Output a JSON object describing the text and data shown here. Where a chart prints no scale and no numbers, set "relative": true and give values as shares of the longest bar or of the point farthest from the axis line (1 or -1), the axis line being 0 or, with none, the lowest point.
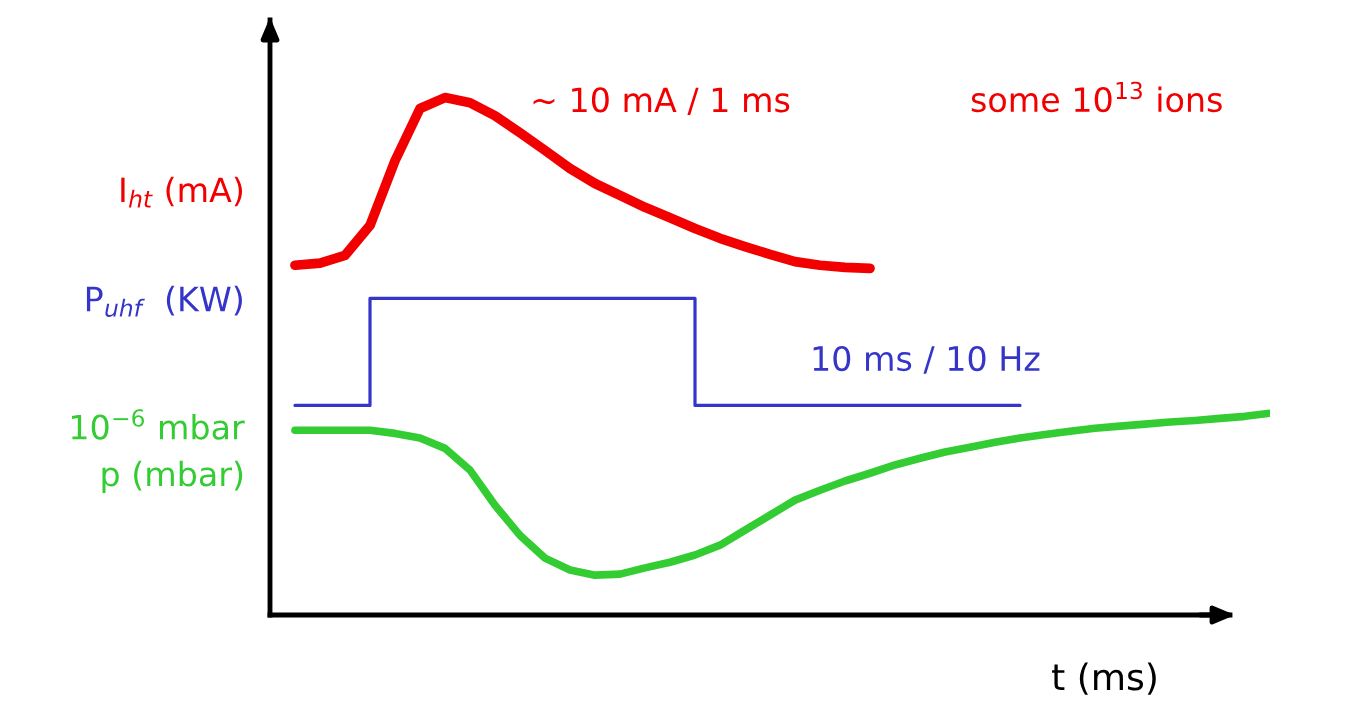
{
  "chart_data": {
    "type": "line",
    "relative": true,
    "xlabel": "t (ms)",
    "marker": "none",
    "line_style": "solid",
    "categories": [
      null,
      null,
      null,
      null,
      null,
      null,
      null,
      null,
      null,
      null,
      null,
      null,
      null,
      null,
      null,
      null,
      null,
      null,
      null,
      null,
      null,
      null,
      null,
      null,
      null,
      null,
      null,
      null,
      null,
      null,
      null,
      null,
      null,
      null,
      null,
      null,
      null,
      null,
      null,
      null
    ],
    "series": [
      {
        "name": "I$_{ht}$ (mA)",
        "color": "#f20000",
        "values": [
          0.676,
          0.68,
          0.695,
          0.753,
          0.878,
          0.979,
          1.0,
          0.99,
          0.965,
          0.932,
          0.898,
          0.863,
          0.834,
          0.811,
          0.788,
          0.768,
          0.747,
          0.728,
          0.712,
          0.697,
          0.683,
          0.676,
          0.672,
          0.67,
          null,
          null,
          null,
          null,
          null,
          null,
          null,
          null,
          null,
          null,
          null,
          null,
          null,
          null,
          null,
          null
        ]
      },
      {
        "name": "P$_{uhf}$  (KW)",
        "type": "step",
        "color": "#3535c8",
        "values": [
          0.405,
          0.405,
          0.405,
          0.612,
          0.612,
          0.612,
          0.612,
          0.612,
          0.612,
          0.612,
          0.612,
          0.612,
          0.612,
          0.612,
          0.612,
          0.612,
          0.405,
          0.405,
          0.405,
          0.405,
          0.405,
          0.405,
          0.405,
          0.405,
          0.405,
          0.405,
          0.405,
          0.405,
          0.405,
          0.405,
          null,
          null,
          null,
          null,
          null,
          null,
          null,
          null,
          null,
          null
        ]
      },
      {
        "name": "p (mbar)",
        "color": "#33cc33",
        "values": [
          0.357,
          0.357,
          0.357,
          0.357,
          0.351,
          0.342,
          0.322,
          0.28,
          0.212,
          0.154,
          0.11,
          0.087,
          0.077,
          0.079,
          0.091,
          0.102,
          0.116,
          0.135,
          0.164,
          0.193,
          0.222,
          0.241,
          0.259,
          0.274,
          0.29,
          0.303,
          0.315,
          0.324,
          0.334,
          0.342,
          0.349,
          0.355,
          0.361,
          0.365,
          0.369,
          0.373,
          0.376,
          0.38,
          0.384,
          0.39
        ]
      }
    ],
    "annotations": [
      "~ 10 mA / 1 ms",
      "some 10$^{13}$ ions",
      "10 ms / 10 Hz",
      "10$^{−6}$ mbar"
    ]
  }
}
